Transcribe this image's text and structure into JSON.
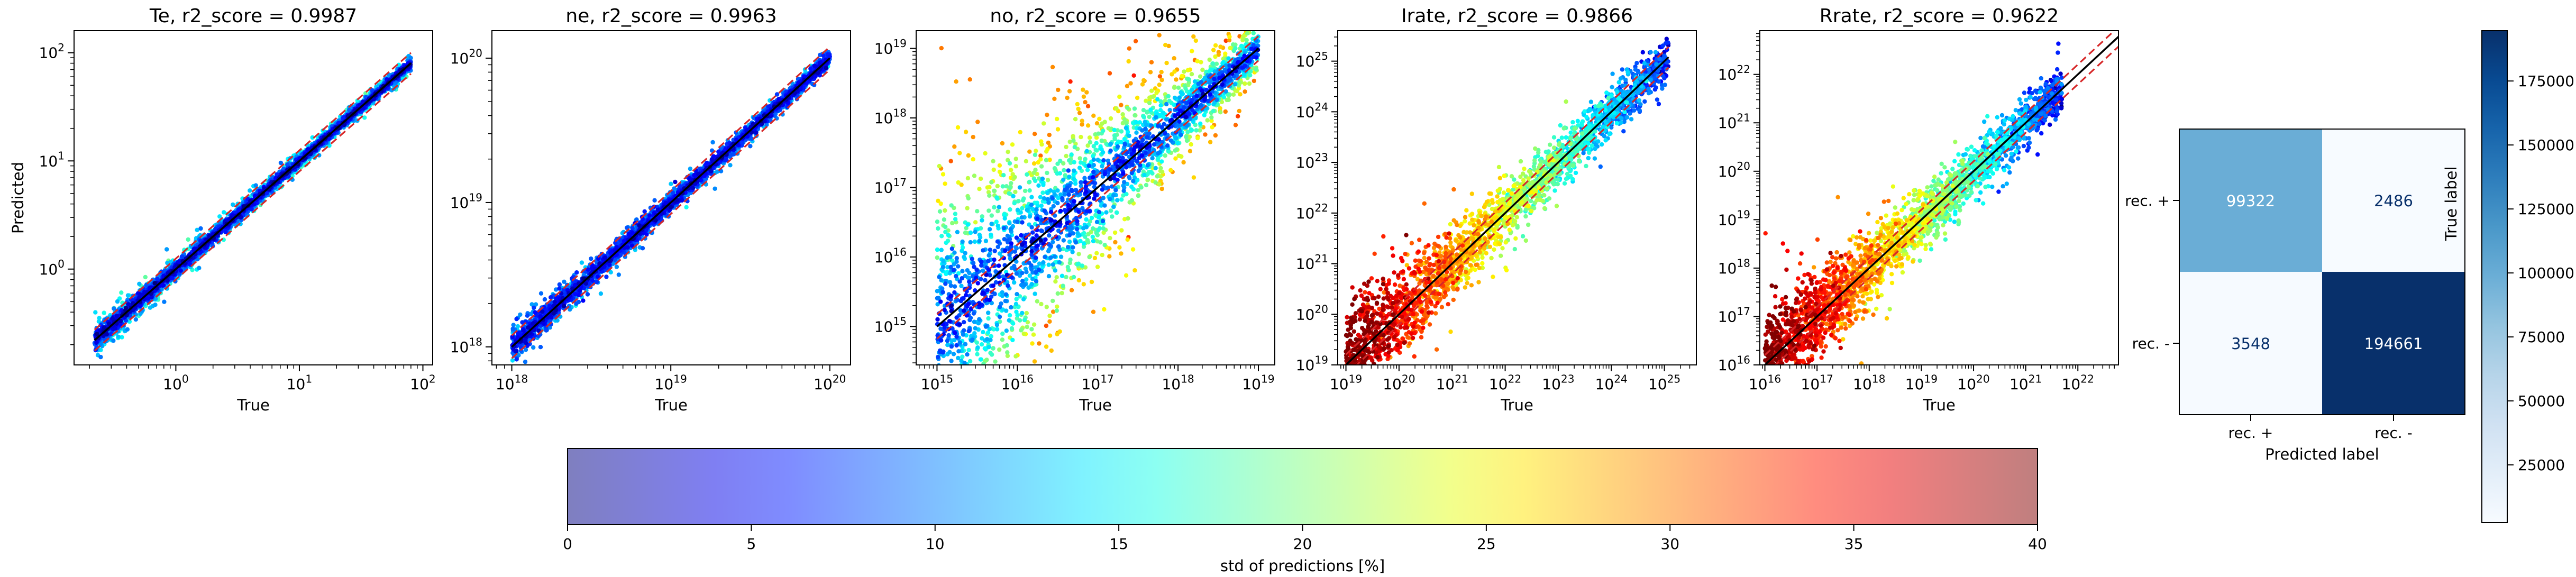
{
  "chart_data": [
    {
      "type": "scatter",
      "title": "Te, r2_score = 0.9987",
      "xlabel": "True",
      "ylabel": "Predicted",
      "xscale": "log",
      "yscale": "log",
      "xlim": [
        0.15,
        120
      ],
      "ylim": [
        0.13,
        160
      ],
      "x_ticks": [
        1,
        10,
        100
      ],
      "x_tick_labels": [
        "10^0",
        "10^1",
        "10^2"
      ],
      "y_ticks": [
        1,
        10,
        100
      ],
      "y_tick_labels": [
        "10^0",
        "10^1",
        "10^2"
      ],
      "data_range": [
        0.22,
        80
      ],
      "log_scatter": 0.03,
      "outlier_spread": 0.05,
      "std_low_pct": 4,
      "std_high_pct": 14,
      "series": [
        {
          "kind": "points",
          "description": "predicted vs true, colored by std of predictions"
        },
        {
          "kind": "identity",
          "color": "#000000",
          "values": [
            [
              0.22,
              0.22
            ],
            [
              80,
              80
            ]
          ]
        },
        {
          "kind": "band",
          "color": "#d62728",
          "factor": 1.25
        }
      ]
    },
    {
      "type": "scatter",
      "title": "ne, r2_score = 0.9963",
      "xlabel": "True",
      "ylabel": "",
      "xscale": "log",
      "yscale": "log",
      "xlim": [
        7.5e+17,
        1.35e+20
      ],
      "ylim": [
        7.5e+17,
        1.55e+20
      ],
      "x_ticks": [
        1e+18,
        1e+19,
        1e+20
      ],
      "x_tick_labels": [
        "10^18",
        "10^19",
        "10^20"
      ],
      "y_ticks": [
        1e+18,
        1e+19,
        1e+20
      ],
      "y_tick_labels": [
        "10^18",
        "10^19",
        "10^20"
      ],
      "data_range": [
        1e+18,
        1e+20
      ],
      "log_scatter": 0.025,
      "outlier_spread": 0.04,
      "std_low_pct": 6,
      "std_high_pct": 10,
      "series": [
        {
          "kind": "points",
          "description": "predicted vs true, colored by std of predictions"
        },
        {
          "kind": "identity",
          "color": "#000000",
          "values": [
            [
              1e+18,
              1e+18
            ],
            [
              1e+20,
              1e+20
            ]
          ]
        },
        {
          "kind": "band",
          "color": "#d62728",
          "factor": 1.2
        }
      ]
    },
    {
      "type": "scatter",
      "title": "no, r2_score = 0.9655",
      "xlabel": "True",
      "ylabel": "",
      "xscale": "log",
      "yscale": "log",
      "xlim": [
        550000000000000.0,
        1.6e+19
      ],
      "ylim": [
        280000000000000.0,
        1.8e+19
      ],
      "x_ticks": [
        1000000000000000.0,
        1e+16,
        1e+17,
        1e+18,
        1e+19
      ],
      "x_tick_labels": [
        "10^15",
        "10^16",
        "10^17",
        "10^18",
        "10^19"
      ],
      "y_ticks": [
        1000000000000000.0,
        1e+16,
        1e+17,
        1e+18,
        1e+19
      ],
      "y_tick_labels": [
        "10^15",
        "10^16",
        "10^17",
        "10^18",
        "10^19"
      ],
      "data_range": [
        1000000000000000.0,
        1e+19
      ],
      "log_scatter": 0.18,
      "outlier_spread": 1.0,
      "std_low_pct": 6,
      "std_high_pct": 28,
      "series": [
        {
          "kind": "points",
          "description": "predicted vs true, colored by std of predictions"
        },
        {
          "kind": "identity",
          "color": "#000000",
          "values": [
            [
              1000000000000000.0,
              1000000000000000.0
            ],
            [
              1e+19,
              1e+19
            ]
          ]
        },
        {
          "kind": "band",
          "color": "#d62728",
          "factor": 1.5
        }
      ]
    },
    {
      "type": "scatter",
      "title": "Irate, r2_score = 0.9866",
      "xlabel": "True",
      "ylabel": "",
      "xscale": "log",
      "yscale": "log",
      "xlim": [
        7e+18,
        4e+25
      ],
      "ylim": [
        1e+19,
        4e+25
      ],
      "x_ticks": [
        1e+19,
        1e+20,
        1e+21,
        1e+22,
        1e+23,
        1e+24,
        1e+25
      ],
      "x_tick_labels": [
        "10^19",
        "10^20",
        "10^21",
        "10^22",
        "10^23",
        "10^24",
        "10^25"
      ],
      "y_ticks": [
        1e+19,
        1e+20,
        1e+21,
        1e+22,
        1e+23,
        1e+24,
        1e+25
      ],
      "y_tick_labels": [
        "10^19",
        "10^20",
        "10^21",
        "10^22",
        "10^23",
        "10^24",
        "10^25"
      ],
      "data_range": [
        1e+19,
        1.2e+25
      ],
      "log_scatter": 0.2,
      "outlier_spread": 0.5,
      "std_low_pct": 5,
      "std_high_pct": 40,
      "series": [
        {
          "kind": "points",
          "description": "predicted vs true, colored by std of predictions"
        },
        {
          "kind": "identity",
          "color": "#000000",
          "values": [
            [
              1e+19,
              1e+19
            ],
            [
              1.2e+25,
              1.2e+25
            ]
          ]
        },
        {
          "kind": "band",
          "color": "#d62728",
          "factor": 1.6
        }
      ]
    },
    {
      "type": "scatter",
      "title": "Rrate, r2_score = 0.9622",
      "xlabel": "True",
      "ylabel": "",
      "xscale": "log",
      "yscale": "log",
      "xlim": [
        8000000000000000.0,
        6e+22
      ],
      "ylim": [
        1e+16,
        8e+22
      ],
      "x_ticks": [
        1e+16,
        1e+17,
        1e+18,
        1e+19,
        1e+20,
        1e+21,
        1e+22
      ],
      "x_tick_labels": [
        "10^16",
        "10^17",
        "10^18",
        "10^19",
        "10^20",
        "10^21",
        "10^22"
      ],
      "y_ticks": [
        1e+16,
        1e+17,
        1e+18,
        1e+19,
        1e+20,
        1e+21,
        1e+22
      ],
      "y_tick_labels": [
        "10^16",
        "10^17",
        "10^18",
        "10^19",
        "10^20",
        "10^21",
        "10^22"
      ],
      "data_range": [
        1e+16,
        5e+21
      ],
      "log_scatter": 0.22,
      "outlier_spread": 0.5,
      "std_low_pct": 5,
      "std_high_pct": 40,
      "series": [
        {
          "kind": "points",
          "description": "predicted vs true, colored by std of predictions"
        },
        {
          "kind": "identity",
          "color": "#000000",
          "values": [
            [
              1e+16,
              1e+16
            ],
            [
              8e+22,
              8e+22
            ]
          ]
        },
        {
          "kind": "band",
          "color": "#d62728",
          "factor": 1.6
        }
      ]
    },
    {
      "type": "heatmap",
      "title": "",
      "xlabel": "Predicted label",
      "ylabel": "True label",
      "x_categories": [
        "rec. +",
        "rec. -"
      ],
      "y_categories": [
        "rec. +",
        "rec. -"
      ],
      "values": [
        [
          99322,
          2486
        ],
        [
          3548,
          194661
        ]
      ],
      "colormap": "Blues",
      "colorbar": {
        "ticks": [
          25000,
          50000,
          75000,
          100000,
          125000,
          150000,
          175000
        ],
        "range": [
          2486,
          194661
        ]
      }
    },
    {
      "type": "colorbar",
      "label": "std of predictions [%]",
      "colormap": "jet",
      "alpha": 0.5,
      "range": [
        0,
        40
      ],
      "ticks": [
        0,
        5,
        10,
        15,
        20,
        25,
        30,
        35,
        40
      ]
    }
  ]
}
